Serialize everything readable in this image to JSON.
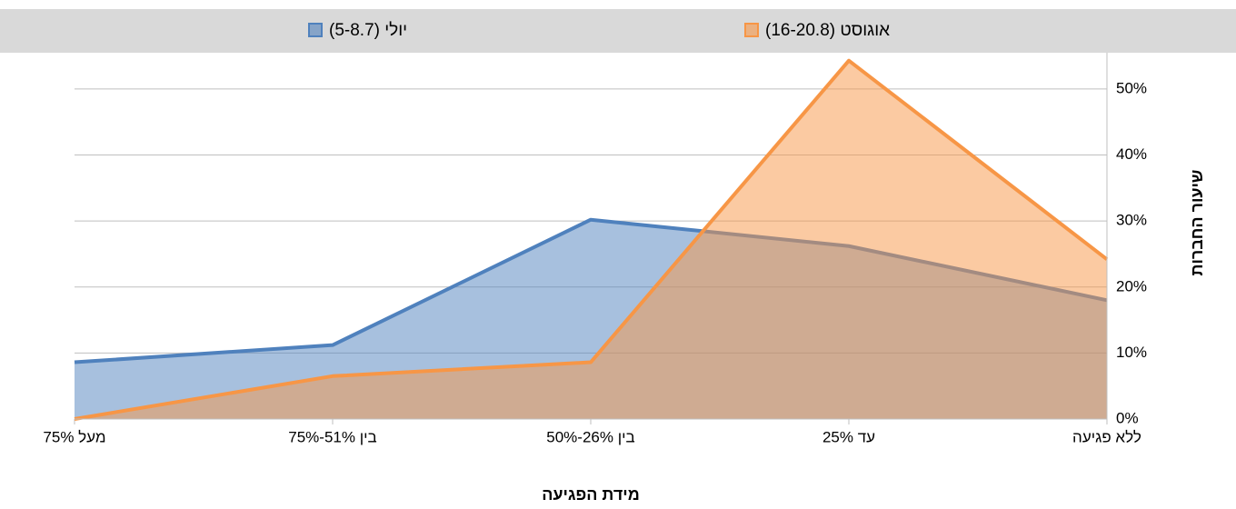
{
  "chart_data": {
    "type": "area",
    "categories": [
      "ללא פגיעה",
      "עד 25%",
      "בין 26%-50%",
      "בין 51%-75%",
      "מעל 75%"
    ],
    "series": [
      {
        "name": "יולי (5-8.7)",
        "color": "#4f81bd",
        "values": [
          18,
          26.2,
          30.2,
          11.2,
          8.6
        ]
      },
      {
        "name": "אוגוסט (16-20.8)",
        "color": "#f79646",
        "values": [
          24.2,
          54.3,
          8.6,
          6.5,
          0
        ]
      }
    ],
    "x_label": "מידת הפגיעה",
    "y_label": "שיעור החברות",
    "ylim": [
      0,
      55.5
    ],
    "yticks": [
      {
        "value": 0,
        "label": "0%"
      },
      {
        "value": 10,
        "label": "10%"
      },
      {
        "value": 20,
        "label": "20%"
      },
      {
        "value": 30,
        "label": "30%"
      },
      {
        "value": 40,
        "label": "40%"
      },
      {
        "value": 50,
        "label": "50%"
      }
    ],
    "grid": true,
    "legend": "top"
  }
}
